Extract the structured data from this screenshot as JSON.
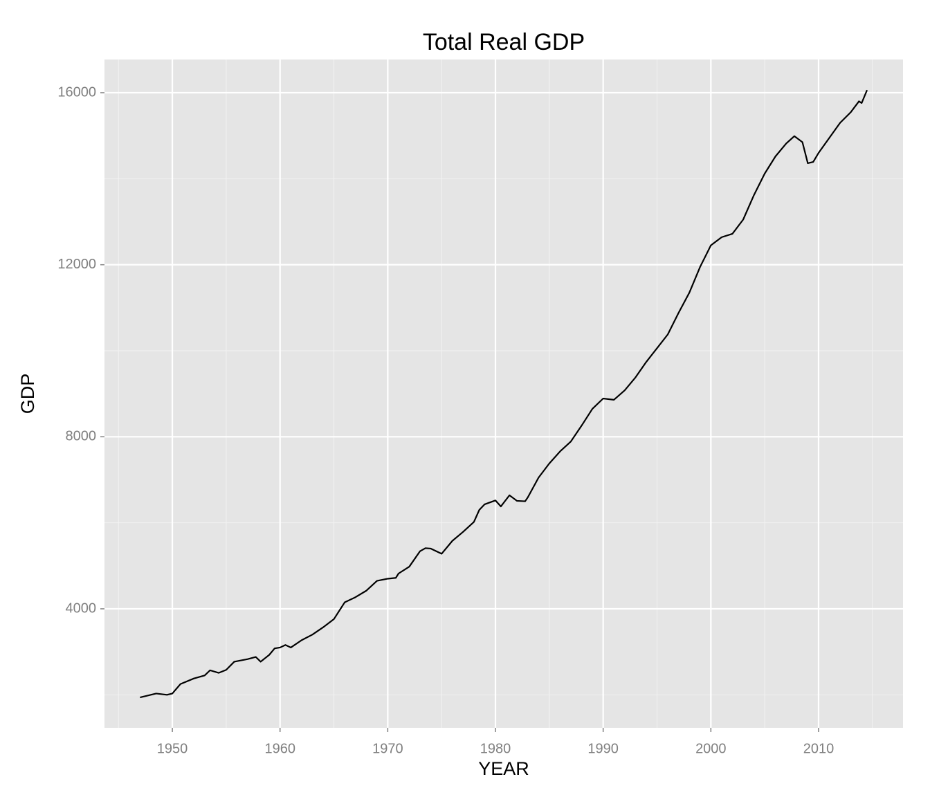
{
  "chart_data": {
    "type": "line",
    "title": "Total Real GDP",
    "x_label": "YEAR",
    "y_label": "GDP",
    "x": [
      1947.0,
      1948.0,
      1948.5,
      1949.5,
      1950.0,
      1950.75,
      1952.0,
      1953.0,
      1953.5,
      1954.3,
      1955.0,
      1955.75,
      1957.0,
      1957.75,
      1958.2,
      1959.0,
      1959.5,
      1960.0,
      1960.5,
      1961.0,
      1962.0,
      1963.0,
      1964.0,
      1965.0,
      1966.0,
      1967.0,
      1968.0,
      1969.0,
      1970.0,
      1970.75,
      1971.0,
      1972.0,
      1973.0,
      1973.5,
      1974.0,
      1975.0,
      1976.0,
      1977.0,
      1978.0,
      1978.5,
      1979.0,
      1980.0,
      1980.5,
      1981.3,
      1982.0,
      1982.75,
      1983.0,
      1984.0,
      1985.0,
      1986.0,
      1987.0,
      1988.0,
      1989.0,
      1990.0,
      1991.0,
      1992.0,
      1993.0,
      1994.0,
      1995.0,
      1996.0,
      1997.0,
      1998.0,
      1999.0,
      2000.0,
      2001.0,
      2002.0,
      2003.0,
      2004.0,
      2005.0,
      2006.0,
      2007.0,
      2007.75,
      2008.5,
      2009.0,
      2009.5,
      2010.0,
      2011.0,
      2012.0,
      2013.0,
      2013.75,
      2014.0,
      2014.5
    ],
    "series": [
      {
        "color": "#000000",
        "values": [
          1940,
          2000,
          2030,
          2000,
          2030,
          2250,
          2380,
          2450,
          2570,
          2510,
          2580,
          2770,
          2830,
          2880,
          2770,
          2930,
          3080,
          3100,
          3160,
          3100,
          3270,
          3400,
          3570,
          3760,
          4150,
          4270,
          4420,
          4650,
          4700,
          4720,
          4820,
          4980,
          5340,
          5410,
          5400,
          5280,
          5580,
          5790,
          6020,
          6300,
          6430,
          6520,
          6380,
          6640,
          6510,
          6500,
          6590,
          7050,
          7380,
          7660,
          7890,
          8260,
          8650,
          8890,
          8860,
          9080,
          9380,
          9740,
          10060,
          10380,
          10880,
          11350,
          11950,
          12450,
          12640,
          12720,
          13050,
          13620,
          14120,
          14520,
          14820,
          14990,
          14850,
          14360,
          14390,
          14600,
          14950,
          15300,
          15550,
          15800,
          15760,
          16060
        ]
      }
    ],
    "xlim": [
      1943.7,
      2017.84
    ],
    "ylim": [
      1233,
      16772
    ],
    "xticks": [
      1950,
      1960,
      1970,
      1980,
      1990,
      2000,
      2010
    ],
    "yticks": [
      4000,
      8000,
      12000,
      16000
    ],
    "xminorticks": [
      1945,
      1955,
      1965,
      1975,
      1985,
      1995,
      2005,
      2015
    ],
    "yminorticks": [
      2000,
      6000,
      10000,
      14000
    ],
    "grid": true
  }
}
